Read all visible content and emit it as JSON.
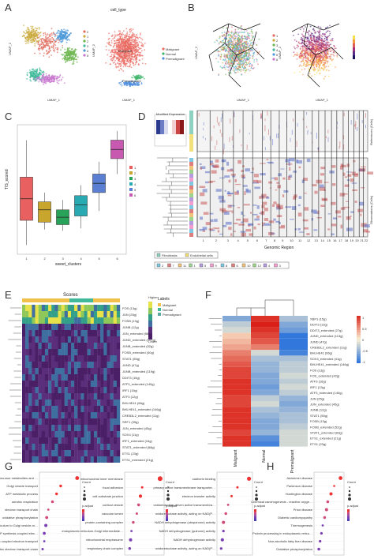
{
  "panels": {
    "A": {
      "label": "A",
      "left": {
        "xlabel": "UMAP_1",
        "ylabel": "UMAP_2",
        "legend": [
          "0",
          "1",
          "2",
          "3",
          "4",
          "5"
        ]
      },
      "right": {
        "title": "cell_type",
        "xlabel": "UMAP_1",
        "ylabel": "UMAP_2",
        "legend": [
          "Malignant",
          "Normal",
          "Premalignant"
        ],
        "annotations": [
          "Malignant",
          "Premalignant"
        ]
      }
    },
    "B": {
      "label": "B",
      "left": {
        "xlabel": "UMAP_1",
        "ylabel": "UMAP_2",
        "legend": [
          "1",
          "2",
          "3",
          "4",
          "5",
          "6"
        ]
      },
      "right": {
        "xlabel": "UMAP_1",
        "ylabel": "UMAP_2"
      }
    },
    "C": {
      "label": "C",
      "legend": [
        "1",
        "2",
        "3",
        "4",
        "5",
        "6"
      ]
    },
    "D": {
      "label": "D",
      "colorbar_title": "Modified Expression",
      "row_groups": [
        "References (Cells)",
        "Observations (Cells)"
      ],
      "xlabel": "Genomic Region",
      "legend1": [
        "Fibroblasts",
        "Endothelial cells"
      ],
      "chromosomes": [
        "1",
        "2",
        "3",
        "4",
        "5",
        "6",
        "7",
        "8",
        "9",
        "10",
        "11",
        "12",
        "13",
        "14",
        "15",
        "16",
        "17",
        "18",
        "19",
        "20",
        "21",
        "22"
      ],
      "legend2": [
        "2",
        "7",
        "11",
        "1",
        "5",
        "9",
        "8",
        "6",
        "10",
        "12",
        "4",
        "3"
      ]
    },
    "E": {
      "label": "E",
      "title": "Scores",
      "legend_title": "Labels",
      "legend": [
        "Malignant",
        "Normal",
        "Premalignant"
      ],
      "cb_high": "Higher",
      "cb_low": "Lower",
      "rows": [
        "FOS (13g)",
        "JUN (25g)",
        "FOSB (13g)",
        "JUNB (12g)",
        "JUN_extended (58g)",
        "JUND_extended (107g)",
        "JUNB_extended (52g)",
        "FOSB_extended (40g)",
        "STAT1 (55g)",
        "JUND (47g)",
        "JUNB_extended (119g)",
        "DDIT3 (15g)",
        "ATF3_extended (140g)",
        "IRF1 (15g)",
        "ATF3 (12g)",
        "BHLHE41 (66g)",
        "BHLHE41_extended (146g)",
        "CREB3L2_extended (11g)",
        "SRF1 (35g)",
        "JUN_extended (45g)",
        "SOX4 (11g)",
        "IRF1_extended (16g)",
        "STAT1_extended (68g)",
        "ETS1 (23g)",
        "ETS1_extended (21g)"
      ]
    },
    "F": {
      "label": "F",
      "columns": [
        "Malignant",
        "Normal",
        "Premalignant"
      ],
      "rows": [
        "XBP1 (15g)",
        "DDIT3 (13g)",
        "DDIT3_extended (27g)",
        "JUND_extended (113g)",
        "JUND (47g)",
        "CREB3L2_extended (11g)",
        "BHLHE41 (66g)",
        "SOX4_extended (41g)",
        "BHLHE41_extended (146g)",
        "FOS (13g)",
        "FOS_extended (42g)",
        "ATF3 (16g)",
        "IRF1 (13g)",
        "ATF3_extended (140g)",
        "JUN (25g)",
        "JUN_extended (45g)",
        "JUNB (12g)",
        "STAT1 (55g)",
        "FOSB (13g)",
        "FOSB_extended (52g)",
        "STAT1_extended (63g)",
        "ETS1_extended (21g)",
        "ETS1 (23g)"
      ],
      "scale": [
        "1",
        "0.5",
        "0",
        "-0.5",
        "-1"
      ]
    },
    "G": {
      "label": "G",
      "p1_terms": [
        "generation of precursor metabolites and energy",
        "Golgi vesicle transport",
        "ATP metabolic process",
        "aerobic respiration",
        "electron transport chain",
        "oxidative phosphorylation",
        "endoplasmic reticulum to Golgi vesicle-mediated transport",
        "mitochondrial ATP synthesis coupled electron transport",
        "ATP synthesis coupled electron transport",
        "aerobic electron transport chain"
      ],
      "p2_terms": [
        "mitochondrial inner membrane",
        "focal adhesion",
        "cell-substrate junction",
        "cortical vesicle",
        "vacuolar lumen",
        "protein-containing complex",
        "endoplasmic reticulum-Golgi intermediate compartment",
        "mitochondrial respirasome",
        "respiratory chain complex"
      ],
      "p3_terms": [
        "cadherin binding",
        "primary active transmembrane transporter activity",
        "electron transfer activity",
        "oxidoreduction-driven active transmembrane transporter activity",
        "oxidoreductase activity, acting on NAD(P)H",
        "NADH dehydrogenase (ubiquinone) activity",
        "NADH dehydrogenase (quinone) activity",
        "NADH dehydrogenase activity",
        "oxidoreductase activity, acting on NAD(P)H, quinone or similar compound as acceptor"
      ],
      "xlabel": "GeneRatio",
      "legend_count": "Count",
      "legend_padj": "p.adjust"
    },
    "H": {
      "label": "H",
      "terms": [
        "Alzheimer disease",
        "Parkinson disease",
        "Huntington disease",
        "Chemical carcinogenesis - reactive oxygen species",
        "Prion disease",
        "Diabetic cardiomyopathy",
        "Thermogenesis",
        "Protein processing in endoplasmic reticulum",
        "Non-alcoholic fatty liver disease",
        "Oxidative phosphorylation"
      ],
      "xlabel": "GeneRatio",
      "legend_count": "Count",
      "legend_padj": "p.adjust"
    }
  },
  "chart_data": [
    {
      "type": "scatter",
      "panel": "C",
      "xlabel": "sweet_clusters",
      "ylabel": "TIS_scored",
      "categories": [
        "1",
        "2",
        "3",
        "4",
        "5",
        "6"
      ],
      "series": [
        {
          "name": "box",
          "values": [
            [
              0.15,
              0.55,
              0.9,
              1.25,
              1.85
            ],
            [
              0.4,
              0.52,
              0.72,
              0.85,
              1.0
            ],
            [
              0.38,
              0.48,
              0.6,
              0.72,
              0.88
            ],
            [
              0.42,
              0.62,
              0.8,
              0.95,
              1.12
            ],
            [
              0.7,
              1.0,
              1.15,
              1.3,
              1.5
            ],
            [
              1.3,
              1.55,
              1.7,
              1.85,
              2.0
            ]
          ]
        }
      ],
      "colors": [
        "#e8605f",
        "#c8a52c",
        "#2aa35a",
        "#29a9b1",
        "#5a7fd3",
        "#c75ab0"
      ]
    },
    {
      "type": "scatter",
      "panel": "G1",
      "x": [
        0.08,
        0.06,
        0.055,
        0.05,
        0.045,
        0.043,
        0.042,
        0.04,
        0.04,
        0.038
      ]
    },
    {
      "type": "scatter",
      "panel": "G2",
      "x": [
        0.09,
        0.07,
        0.068,
        0.066,
        0.064,
        0.06,
        0.058,
        0.057,
        0.056
      ]
    },
    {
      "type": "scatter",
      "panel": "G3",
      "x": [
        0.06,
        0.05,
        0.045,
        0.042,
        0.04,
        0.038,
        0.038,
        0.037,
        0.036
      ]
    },
    {
      "type": "scatter",
      "panel": "H",
      "x": [
        0.11,
        0.1,
        0.095,
        0.09,
        0.088,
        0.085,
        0.082,
        0.08,
        0.078,
        0.076
      ]
    }
  ]
}
